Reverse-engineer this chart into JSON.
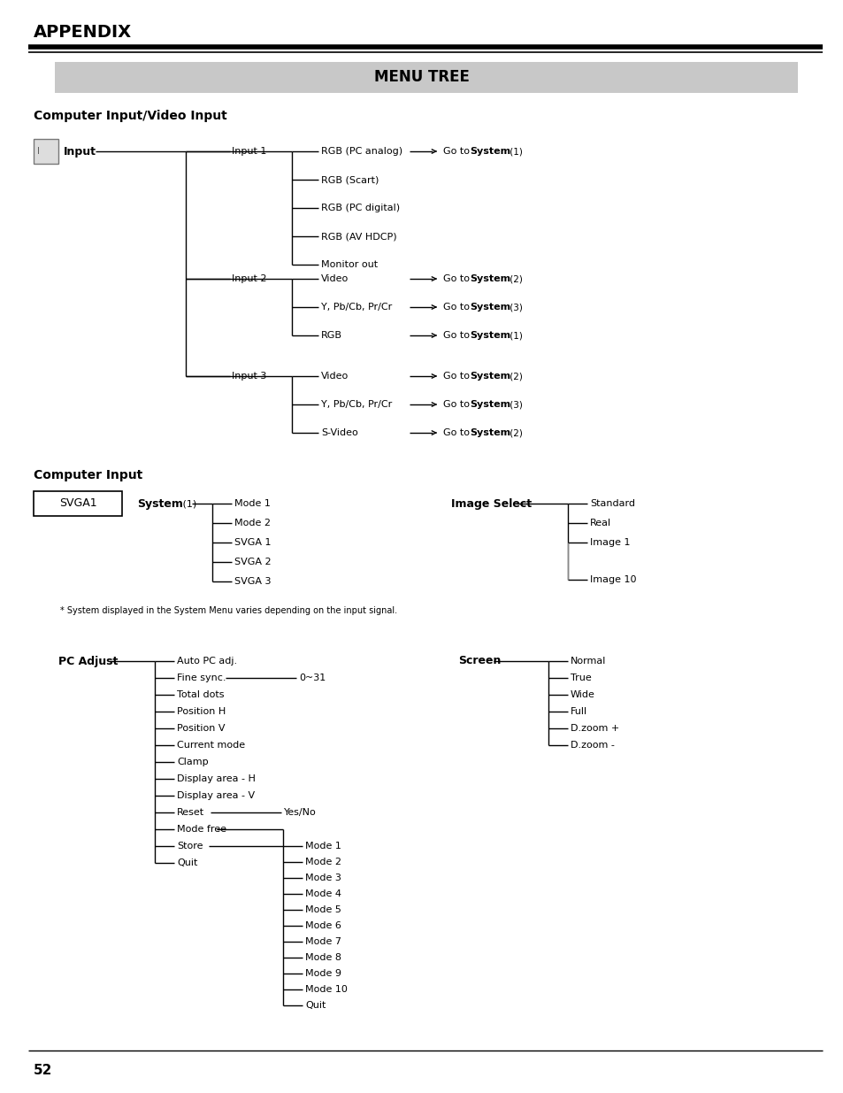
{
  "bg_color": "#ffffff",
  "title": "MENU TREE",
  "title_bg": "#c8c8c8",
  "appendix_title": "APPENDIX",
  "section1_title": "Computer Input/Video Input",
  "section2_title": "Computer Input",
  "page_number": "52",
  "note_text": "* System displayed in the System Menu varies depending on the input signal.",
  "system_items": [
    "Mode 1",
    "Mode 2",
    "SVGA 1",
    "SVGA 2",
    "SVGA 3"
  ],
  "image_select_items": [
    "Standard",
    "Real",
    "Image 1",
    "Image 10"
  ],
  "pc_items": [
    {
      "label": "Auto PC adj.",
      "sub": null
    },
    {
      "label": "Fine sync.",
      "sub": "0~31"
    },
    {
      "label": "Total dots",
      "sub": null
    },
    {
      "label": "Position H",
      "sub": null
    },
    {
      "label": "Position V",
      "sub": null
    },
    {
      "label": "Current mode",
      "sub": null
    },
    {
      "label": "Clamp",
      "sub": null
    },
    {
      "label": "Display area - H",
      "sub": null
    },
    {
      "label": "Display area - V",
      "sub": null
    },
    {
      "label": "Reset",
      "sub": "Yes/No"
    },
    {
      "label": "Mode free",
      "sub": null
    },
    {
      "label": "Store",
      "sub": null
    },
    {
      "label": "Quit",
      "sub": null
    }
  ],
  "store_children": [
    "Mode 1",
    "Mode 2",
    "Mode 3",
    "Mode 4",
    "Mode 5",
    "Mode 6",
    "Mode 7",
    "Mode 8",
    "Mode 9",
    "Mode 10",
    "Quit"
  ],
  "screen_items": [
    "Normal",
    "True",
    "Wide",
    "Full",
    "D.zoom +",
    "D.zoom -"
  ]
}
